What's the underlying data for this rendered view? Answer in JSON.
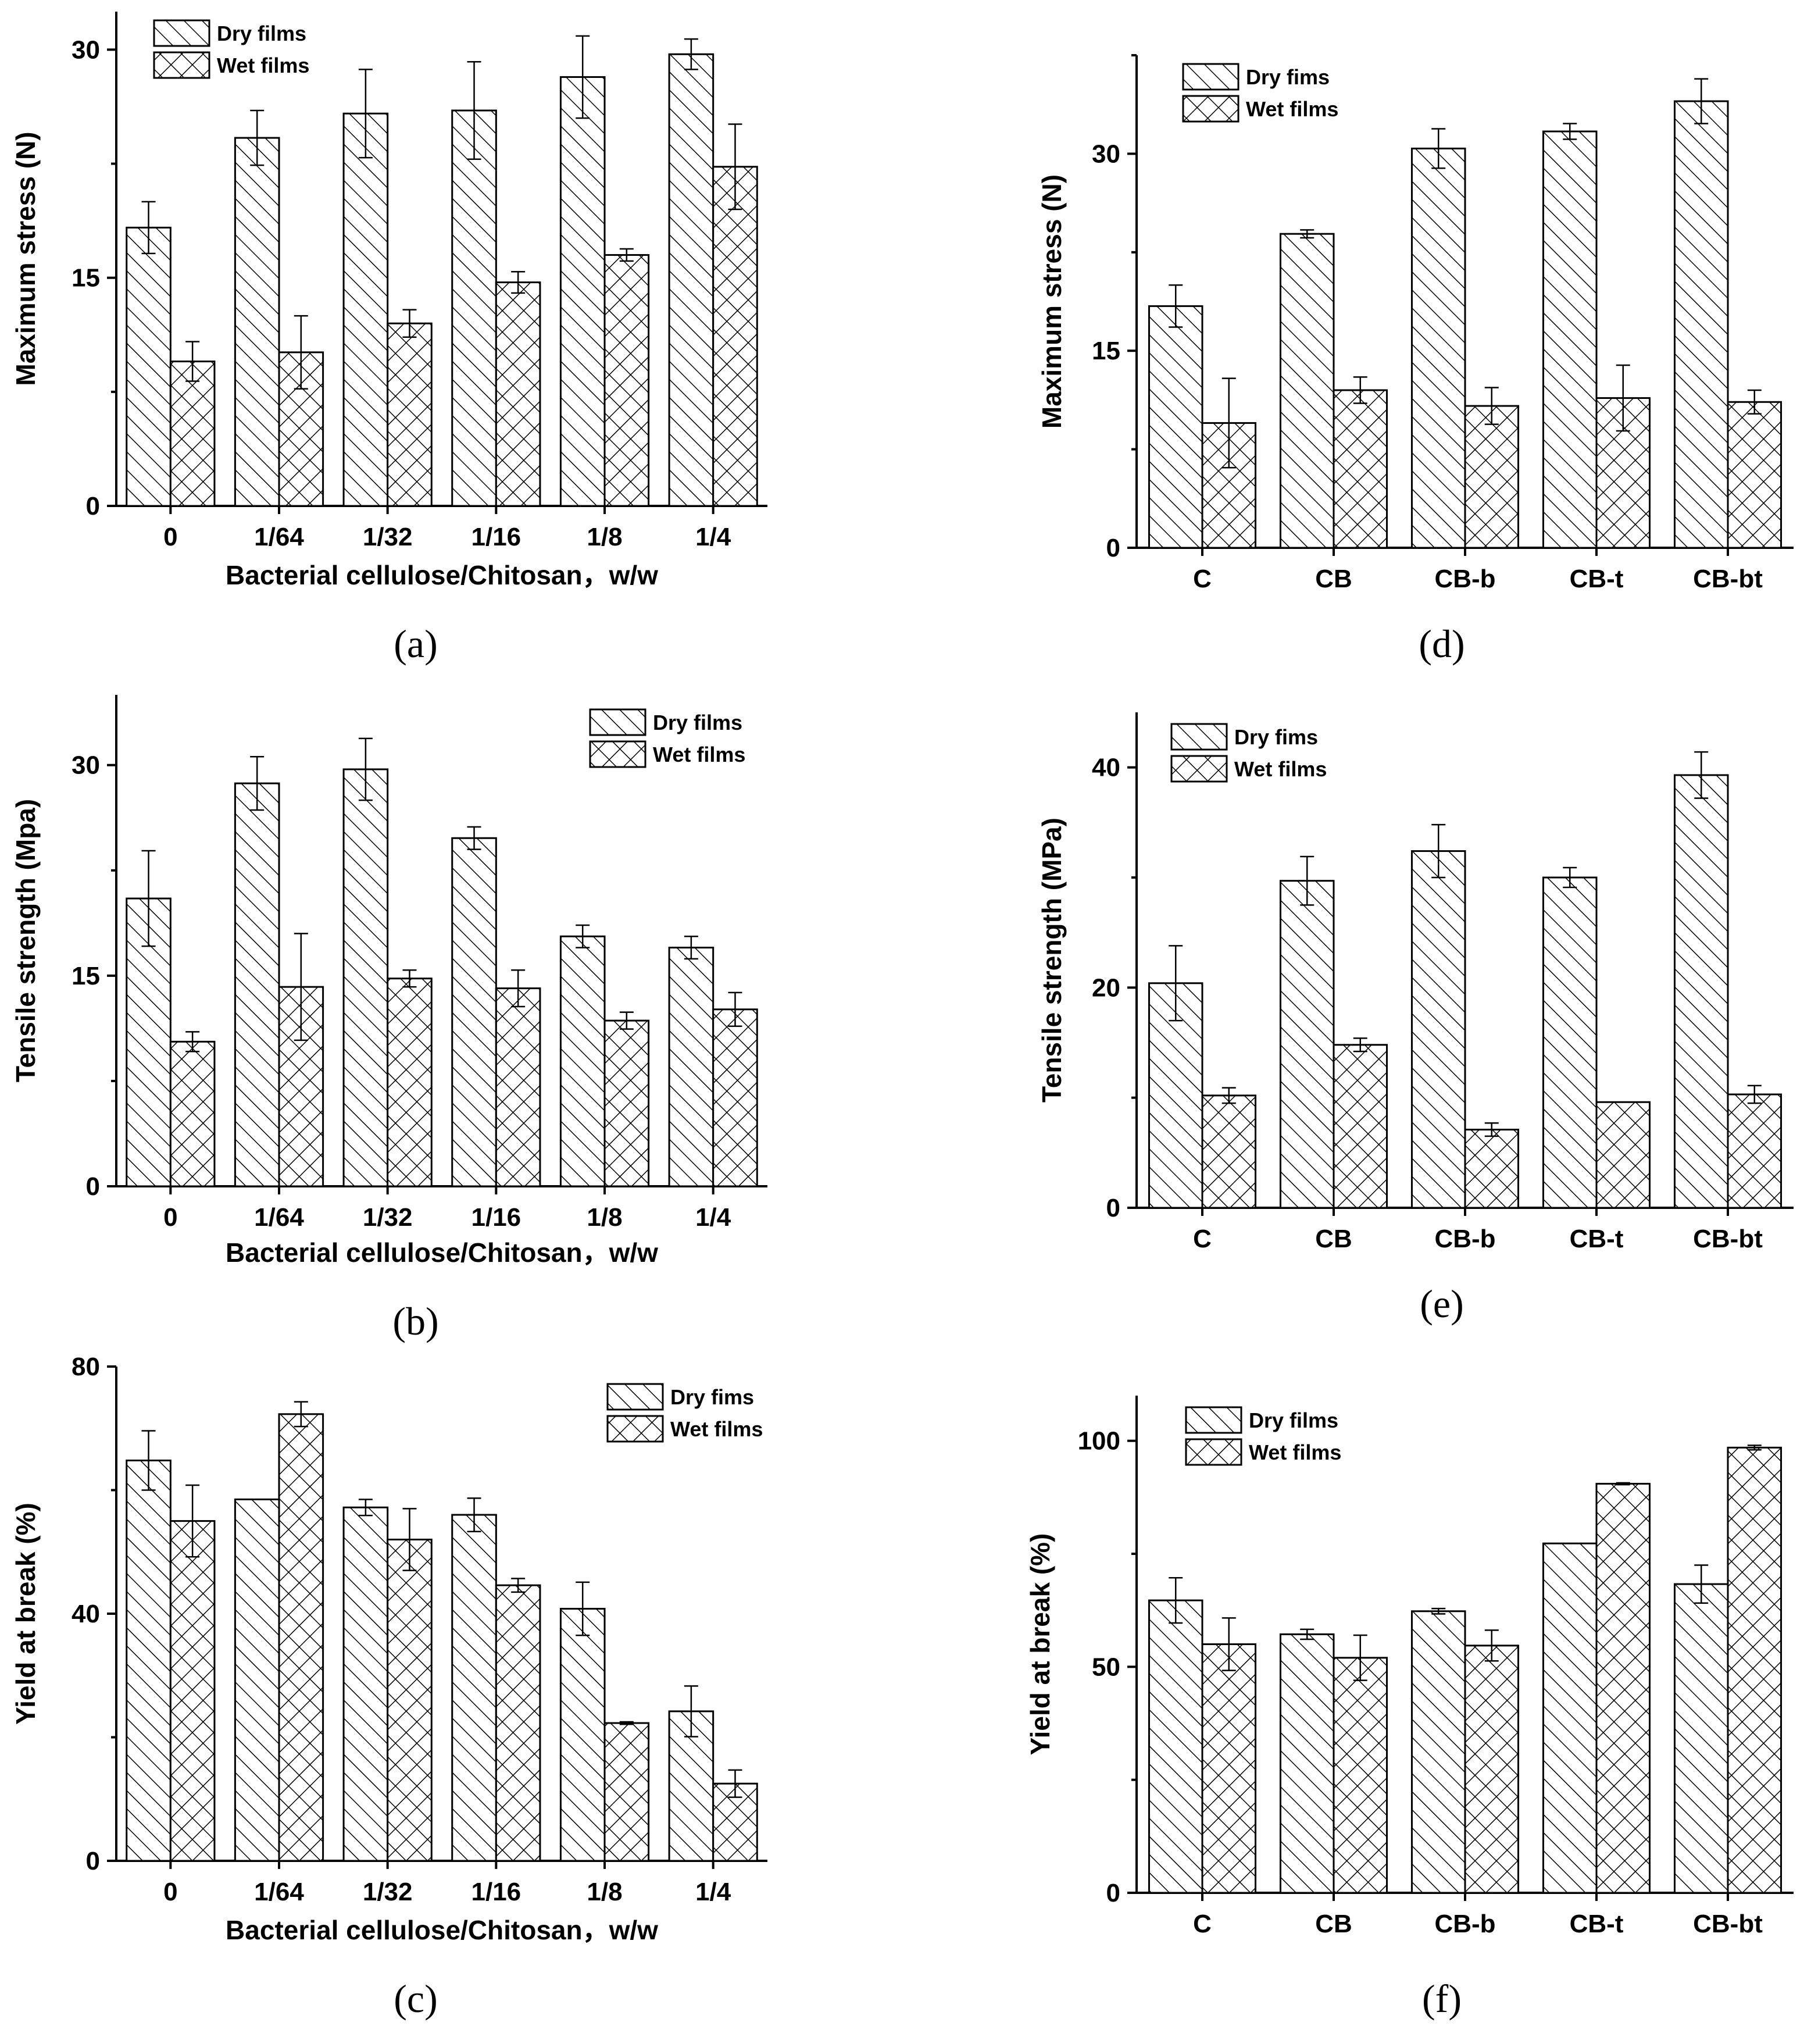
{
  "chart_data": [
    {
      "panel": "(a)",
      "type": "bar",
      "ylabel": "Maximum stress (N)",
      "xlabel": "Bacterial cellulose/Chitosan，w/w",
      "categories": [
        "0",
        "1/64",
        "1/32",
        "1/16",
        "1/8",
        "1/4"
      ],
      "yticks": [
        "0",
        "15",
        "30"
      ],
      "ylim": [
        0,
        30
      ],
      "legend_position": "top-left",
      "series": [
        {
          "name": "Dry films",
          "pattern": "diagonal-hatch",
          "values": [
            18.3,
            24.2,
            25.8,
            26.0,
            28.2,
            29.7
          ],
          "errors": [
            1.7,
            1.8,
            2.9,
            3.2,
            2.7,
            1.0
          ]
        },
        {
          "name": "Wet films",
          "pattern": "cross-hatch",
          "values": [
            9.5,
            10.1,
            12.0,
            14.7,
            16.5,
            22.3
          ],
          "errors": [
            1.3,
            2.4,
            0.9,
            0.7,
            0.4,
            2.8
          ]
        }
      ]
    },
    {
      "panel": "(b)",
      "type": "bar",
      "ylabel": "Tensile strength (Mpa)",
      "xlabel": "Bacterial cellulose/Chitosan，w/w",
      "categories": [
        "0",
        "1/64",
        "1/32",
        "1/16",
        "1/8",
        "1/4"
      ],
      "yticks": [
        "0",
        "15",
        "30"
      ],
      "ylim": [
        0,
        30
      ],
      "legend_position": "top-right",
      "series": [
        {
          "name": "Dry films",
          "pattern": "diagonal-hatch",
          "values": [
            20.5,
            28.7,
            29.7,
            24.8,
            17.8,
            17.0
          ],
          "errors": [
            3.4,
            1.9,
            2.2,
            0.8,
            0.8,
            0.8
          ]
        },
        {
          "name": "Wet films",
          "pattern": "cross-hatch",
          "values": [
            10.3,
            14.2,
            14.8,
            14.1,
            11.8,
            12.6
          ],
          "errors": [
            0.7,
            3.8,
            0.6,
            1.3,
            0.6,
            1.2
          ]
        }
      ]
    },
    {
      "panel": "(c)",
      "type": "bar",
      "ylabel": "Yield at break (%)",
      "xlabel": "Bacterial cellulose/Chitosan，w/w",
      "categories": [
        "0",
        "1/64",
        "1/32",
        "1/16",
        "1/8",
        "1/4"
      ],
      "yticks": [
        "0",
        "40",
        "80"
      ],
      "ylim": [
        0,
        80
      ],
      "legend_position": "top-right",
      "series": [
        {
          "name": "Dry fims",
          "pattern": "diagonal-hatch",
          "values": [
            64.8,
            58.5,
            57.2,
            56.0,
            40.8,
            24.2
          ],
          "errors": [
            4.8,
            0.0,
            1.3,
            2.7,
            4.3,
            4.1
          ]
        },
        {
          "name": "Wet films",
          "pattern": "cross-hatch",
          "values": [
            55.0,
            72.3,
            52.0,
            44.6,
            22.3,
            12.5
          ],
          "errors": [
            5.8,
            2.0,
            5.0,
            1.1,
            0.2,
            2.2
          ]
        }
      ]
    },
    {
      "panel": "(d)",
      "type": "bar",
      "ylabel": "Maximum stress (N)",
      "xlabel": "",
      "categories": [
        "C",
        "CB",
        "CB-b",
        "CB-t",
        "CB-bt"
      ],
      "yticks": [
        "0",
        "15",
        "30"
      ],
      "ylim": [
        0,
        30
      ],
      "legend_position": "top-left",
      "series": [
        {
          "name": "Dry fims",
          "pattern": "diagonal-hatch",
          "values": [
            18.4,
            23.9,
            30.4,
            31.7,
            34.0
          ],
          "errors": [
            1.6,
            0.3,
            1.5,
            0.6,
            1.7
          ]
        },
        {
          "name": "Wet films",
          "pattern": "cross-hatch",
          "values": [
            9.5,
            12.0,
            10.8,
            11.4,
            11.1
          ],
          "errors": [
            3.4,
            1.0,
            1.4,
            2.5,
            0.9
          ]
        }
      ]
    },
    {
      "panel": "(e)",
      "type": "bar",
      "ylabel": "Tensile strength (MPa)",
      "xlabel": "",
      "categories": [
        "C",
        "CB",
        "CB-b",
        "CB-t",
        "CB-bt"
      ],
      "yticks": [
        "0",
        "20",
        "40"
      ],
      "ylim": [
        0,
        40
      ],
      "legend_position": "top-left",
      "series": [
        {
          "name": "Dry fims",
          "pattern": "diagonal-hatch",
          "values": [
            20.4,
            29.7,
            32.4,
            30.0,
            39.3
          ],
          "errors": [
            3.4,
            2.2,
            2.4,
            0.9,
            2.1
          ]
        },
        {
          "name": "Wet films",
          "pattern": "cross-hatch",
          "values": [
            10.2,
            14.8,
            7.1,
            9.6,
            10.3
          ],
          "errors": [
            0.7,
            0.6,
            0.6,
            0.0,
            0.8
          ]
        }
      ]
    },
    {
      "panel": "(f)",
      "type": "bar",
      "ylabel": "Yield at break (%)",
      "xlabel": "",
      "categories": [
        "C",
        "CB",
        "CB-b",
        "CB-t",
        "CB-bt"
      ],
      "yticks": [
        "0",
        "50",
        "100"
      ],
      "ylim": [
        0,
        100
      ],
      "legend_position": "top-left",
      "series": [
        {
          "name": "Dry films",
          "pattern": "diagonal-hatch",
          "values": [
            64.7,
            57.2,
            62.3,
            77.3,
            68.3
          ],
          "errors": [
            5.0,
            1.1,
            0.6,
            0.0,
            4.2
          ]
        },
        {
          "name": "Wet films",
          "pattern": "cross-hatch",
          "values": [
            55.0,
            52.0,
            54.7,
            90.5,
            98.5
          ],
          "errors": [
            5.8,
            5.0,
            3.4,
            0.2,
            0.5
          ]
        }
      ]
    }
  ]
}
